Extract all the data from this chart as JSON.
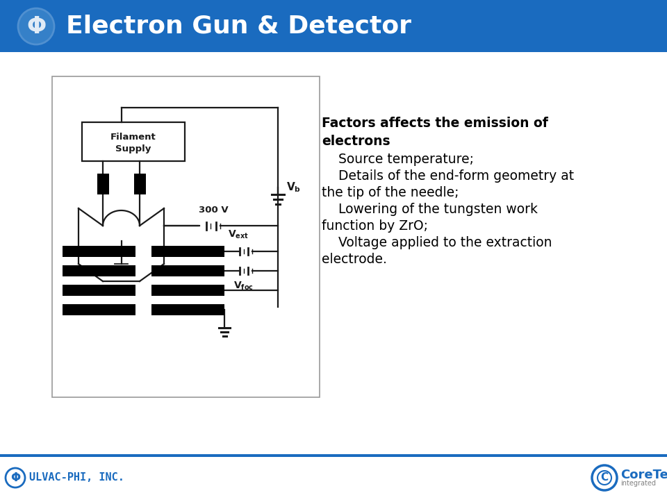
{
  "title": "Electron Gun & Detector",
  "title_color": "#ffffff",
  "header_bg": "#1a6bbf",
  "body_bg": "#ffffff",
  "footer_line_color": "#1a6bbf",
  "text_color": "#000000",
  "ulvac_text": "ULVAC-PHI, INC.",
  "ulvac_color": "#1a6bbf",
  "coretech_text": "CoreTech",
  "factors_text_lines": [
    {
      "text": "Factors affects the emission of",
      "bold": true,
      "indent": 0
    },
    {
      "text": "electrons",
      "bold": true,
      "indent": 0
    },
    {
      "text": "    Source temperature;",
      "bold": false,
      "indent": 0
    },
    {
      "text": "    Details of the end-form geometry at",
      "bold": false,
      "indent": 0
    },
    {
      "text": "the tip of the needle;",
      "bold": false,
      "indent": 0
    },
    {
      "text": "    Lowering of the tungsten work",
      "bold": false,
      "indent": 0
    },
    {
      "text": "function by ZrO;",
      "bold": false,
      "indent": 0
    },
    {
      "text": "    Voltage applied to the extraction",
      "bold": false,
      "indent": 0
    },
    {
      "text": "electrode.",
      "bold": false,
      "indent": 0
    }
  ]
}
